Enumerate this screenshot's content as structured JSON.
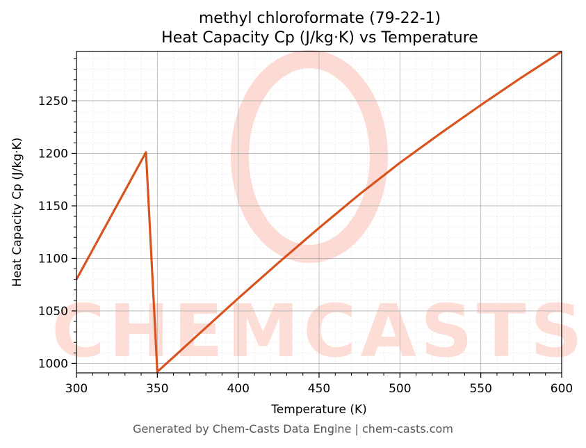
{
  "chart_data": {
    "type": "line",
    "title": "methyl chloroformate (79-22-1)",
    "subtitle": "Heat Capacity Cp (J/kg·K) vs Temperature",
    "xlabel": "Temperature (K)",
    "ylabel": "Heat Capacity Cp (J/kg·K)",
    "xlim": [
      300,
      600
    ],
    "ylim": [
      991,
      1297
    ],
    "x_ticks": [
      300,
      350,
      400,
      450,
      500,
      550,
      600
    ],
    "y_ticks": [
      1000,
      1050,
      1100,
      1150,
      1200,
      1250
    ],
    "grid": true,
    "legend": "none",
    "series": [
      {
        "color": "#d9531e",
        "x": [
          300,
          343,
          349,
          350,
          375,
          400,
          425,
          450,
          475,
          500,
          525,
          550,
          575,
          600
        ],
        "y": [
          1080,
          1201,
          1022,
          992,
          1027,
          1062,
          1096,
          1129,
          1161,
          1191,
          1219,
          1246,
          1272,
          1297
        ]
      }
    ]
  },
  "watermark": {
    "text": "CHEMCASTS",
    "color": "#fdd5cc"
  },
  "footer": "Generated by Chem-Casts Data Engine | chem-casts.com"
}
